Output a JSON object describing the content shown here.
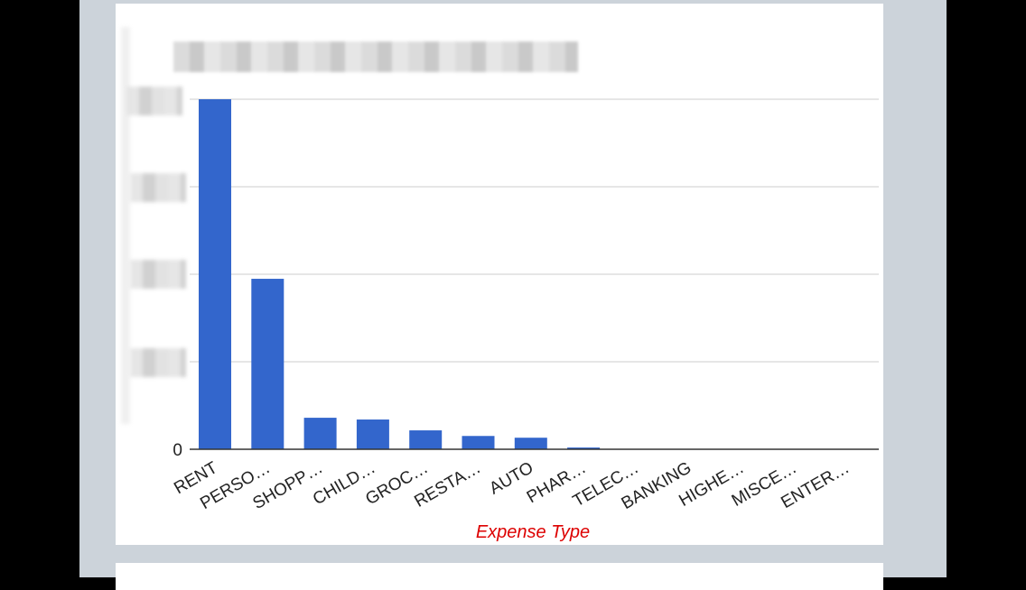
{
  "chart_data": {
    "type": "bar",
    "title": "",
    "xlabel": "Expense Type",
    "ylabel": "",
    "categories": [
      "RENT",
      "PERSO…",
      "SHOPP…",
      "CHILD…",
      "GROC…",
      "RESTA…",
      "AUTO",
      "PHAR…",
      "TELEC…",
      "BANKING",
      "HIGHE…",
      "MISCE…",
      "ENTER…"
    ],
    "values": [
      100,
      48.7,
      9.0,
      8.5,
      5.4,
      3.8,
      3.3,
      0.5,
      0.1,
      0.0,
      0.0,
      0.0,
      0.0
    ],
    "ylim": [
      0,
      100
    ],
    "y_ticks": [
      "0"
    ],
    "grid": true,
    "bar_color": "#3366cc",
    "xlabel_color": "#dd0000"
  }
}
